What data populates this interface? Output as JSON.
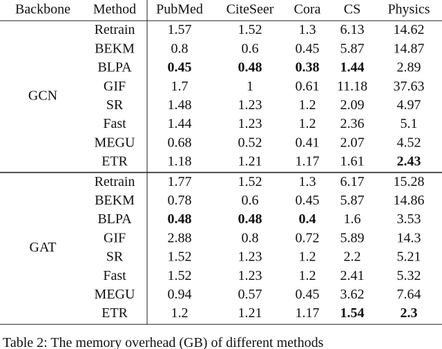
{
  "table": {
    "header": [
      "Backbone",
      "Method",
      "PubMed",
      "CiteSeer",
      "Cora",
      "CS",
      "Physics"
    ],
    "groups": [
      {
        "backbone": "GCN",
        "rows": [
          [
            "Retrain",
            "1.57",
            "1.52",
            "1.3",
            "6.13",
            "14.62"
          ],
          [
            "BEKM",
            "0.8",
            "0.6",
            "0.45",
            "5.87",
            "14.87"
          ],
          [
            "BLPA",
            "0.45",
            "0.48",
            "0.38",
            "1.44",
            "2.89"
          ],
          [
            "GIF",
            "1.7",
            "1",
            "0.61",
            "11.18",
            "37.63"
          ],
          [
            "SR",
            "1.48",
            "1.23",
            "1.2",
            "2.09",
            "4.97"
          ],
          [
            "Fast",
            "1.44",
            "1.23",
            "1.2",
            "2.36",
            "5.1"
          ],
          [
            "MEGU",
            "0.68",
            "0.52",
            "0.41",
            "2.07",
            "4.52"
          ],
          [
            "ETR",
            "1.18",
            "1.21",
            "1.17",
            "1.61",
            "2.43"
          ]
        ],
        "bold": [
          [
            2,
            1
          ],
          [
            2,
            2
          ],
          [
            2,
            3
          ],
          [
            2,
            4
          ],
          [
            7,
            5
          ]
        ]
      },
      {
        "backbone": "GAT",
        "rows": [
          [
            "Retrain",
            "1.77",
            "1.52",
            "1.3",
            "6.17",
            "15.28"
          ],
          [
            "BEKM",
            "0.78",
            "0.6",
            "0.45",
            "5.87",
            "14.86"
          ],
          [
            "BLPA",
            "0.48",
            "0.48",
            "0.4",
            "1.6",
            "3.53"
          ],
          [
            "GIF",
            "2.88",
            "0.8",
            "0.72",
            "5.89",
            "14.3"
          ],
          [
            "SR",
            "1.52",
            "1.23",
            "1.2",
            "2.2",
            "5.21"
          ],
          [
            "Fast",
            "1.52",
            "1.23",
            "1.2",
            "2.41",
            "5.32"
          ],
          [
            "MEGU",
            "0.94",
            "0.57",
            "0.45",
            "3.62",
            "7.64"
          ],
          [
            "ETR",
            "1.2",
            "1.21",
            "1.17",
            "1.54",
            "2.3"
          ]
        ],
        "bold": [
          [
            2,
            1
          ],
          [
            2,
            2
          ],
          [
            2,
            3
          ],
          [
            7,
            4
          ],
          [
            7,
            5
          ]
        ]
      }
    ],
    "caption": "Table 2: The memory overhead (GB) of different methods"
  }
}
